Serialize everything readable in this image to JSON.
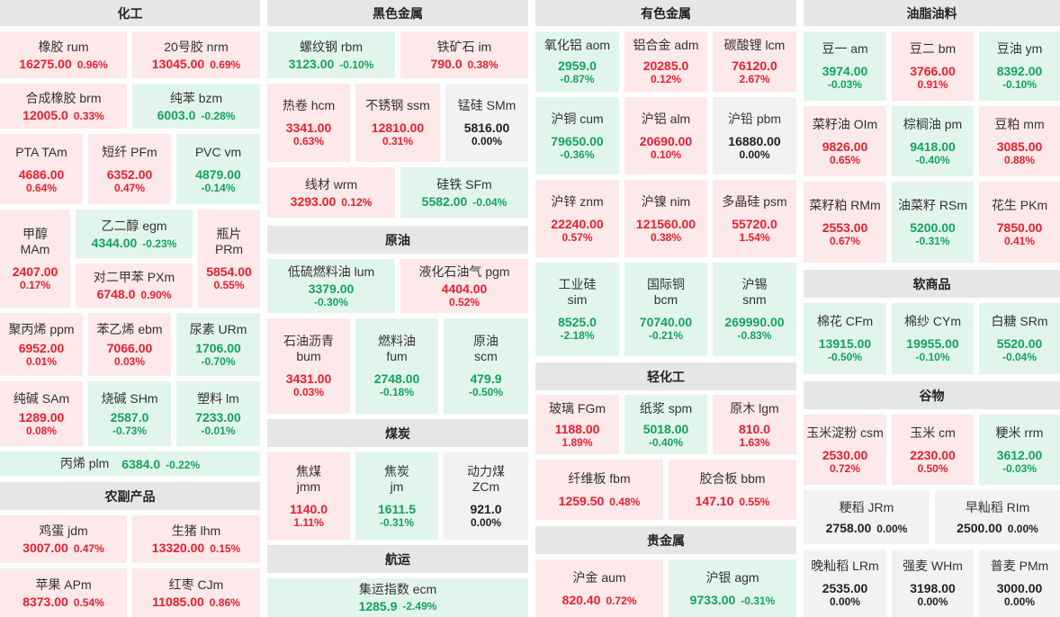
{
  "sections": {
    "huagong": "化工",
    "heise": "黑色金属",
    "youse": "有色金属",
    "youzhi": "油脂油料",
    "nongfu": "农副产品",
    "yuanyou": "原油",
    "meitan": "煤炭",
    "hangyun": "航运",
    "qinghua": "轻化工",
    "guijinshu": "贵金属",
    "ruanshang": "软商品",
    "guwu": "谷物"
  },
  "tiles": {
    "rum": {
      "name": "橡胶  rum",
      "price": "16275.00",
      "chg": "0.96%"
    },
    "nrm": {
      "name": "20号胶  nrm",
      "price": "13045.00",
      "chg": "0.69%"
    },
    "brm": {
      "name": "合成橡胶  brm",
      "price": "12005.0",
      "chg": "0.33%"
    },
    "bzm": {
      "name": "纯苯  bzm",
      "price": "6003.0",
      "chg": "-0.28%"
    },
    "tam": {
      "name": "PTA  TAm",
      "price": "4686.00",
      "chg": "0.64%"
    },
    "pfm": {
      "name": "短纤  PFm",
      "price": "6352.00",
      "chg": "0.47%"
    },
    "vm": {
      "name": "PVC  vm",
      "price": "4879.00",
      "chg": "-0.14%"
    },
    "mam_n1": {
      "name": "甲醇"
    },
    "mam": {
      "name": "MAm",
      "price": "2407.00",
      "chg": "0.17%"
    },
    "egm": {
      "name": "乙二醇  egm",
      "price": "4344.00",
      "chg": "-0.23%"
    },
    "prm_n1": {
      "name": "瓶片"
    },
    "prm": {
      "name": "PRm",
      "price": "5854.00",
      "chg": "0.55%"
    },
    "pxm": {
      "name": "对二甲苯  PXm",
      "price": "6748.0",
      "chg": "0.90%"
    },
    "ppm": {
      "name": "聚丙烯  ppm",
      "price": "6952.00",
      "chg": "0.01%"
    },
    "ebm": {
      "name": "苯乙烯  ebm",
      "price": "7066.00",
      "chg": "0.03%"
    },
    "urm": {
      "name": "尿素  URm",
      "price": "1706.00",
      "chg": "-0.70%"
    },
    "sam": {
      "name": "纯碱  SAm",
      "price": "1289.00",
      "chg": "0.08%"
    },
    "shm": {
      "name": "烧碱  SHm",
      "price": "2587.0",
      "chg": "-0.73%"
    },
    "lm": {
      "name": "塑料  lm",
      "price": "7233.00",
      "chg": "-0.01%"
    },
    "plm": {
      "name": "丙烯  plm",
      "price": "6384.0",
      "chg": "-0.22%"
    },
    "rbm": {
      "name": "螺纹钢  rbm",
      "price": "3123.00",
      "chg": "-0.10%"
    },
    "im": {
      "name": "铁矿石  im",
      "price": "790.0",
      "chg": "0.38%"
    },
    "hcm": {
      "name": "热卷  hcm",
      "price": "3341.00",
      "chg": "0.63%"
    },
    "ssm": {
      "name": "不锈钢  ssm",
      "price": "12810.00",
      "chg": "0.31%"
    },
    "smm": {
      "name": "锰硅  SMm",
      "price": "5816.00",
      "chg": "0.00%"
    },
    "wrm": {
      "name": "线材  wrm",
      "price": "3293.00",
      "chg": "0.12%"
    },
    "sfm": {
      "name": "硅铁  SFm",
      "price": "5582.00",
      "chg": "-0.04%"
    },
    "lum": {
      "name": "低硫燃料油  lum",
      "price": "3379.00",
      "chg": "-0.30%"
    },
    "pgm": {
      "name": "液化石油气  pgm",
      "price": "4404.00",
      "chg": "0.52%"
    },
    "bum_n1": {
      "name": "石油沥青"
    },
    "bum": {
      "name": "bum",
      "price": "3431.00",
      "chg": "0.03%"
    },
    "fum_n1": {
      "name": "燃料油"
    },
    "fum": {
      "name": "fum",
      "price": "2748.00",
      "chg": "-0.18%"
    },
    "scm_n1": {
      "name": "原油"
    },
    "scm": {
      "name": "scm",
      "price": "479.9",
      "chg": "-0.50%"
    },
    "jmm_n1": {
      "name": "焦煤"
    },
    "jmm": {
      "name": "jmm",
      "price": "1140.0",
      "chg": "1.11%"
    },
    "jm_n1": {
      "name": "焦炭"
    },
    "jm": {
      "name": "jm",
      "price": "1611.5",
      "chg": "-0.31%"
    },
    "zcm_n1": {
      "name": "动力煤"
    },
    "zcm": {
      "name": "ZCm",
      "price": "921.0",
      "chg": "0.00%"
    },
    "ecm": {
      "name": "集运指数  ecm",
      "price": "1285.9",
      "chg": "-2.49%"
    },
    "aom": {
      "name": "氧化铝  aom",
      "price": "2959.0",
      "chg": "-0.87%"
    },
    "adm": {
      "name": "铝合金  adm",
      "price": "20285.0",
      "chg": "0.12%"
    },
    "lcm": {
      "name": "碳酸锂  lcm",
      "price": "76120.0",
      "chg": "2.67%"
    },
    "cum": {
      "name": "沪铜  cum",
      "price": "79650.00",
      "chg": "-0.36%"
    },
    "alm": {
      "name": "沪铝  alm",
      "price": "20690.00",
      "chg": "0.10%"
    },
    "pbm": {
      "name": "沪铅  pbm",
      "price": "16880.00",
      "chg": "0.00%"
    },
    "znm": {
      "name": "沪锌  znm",
      "price": "22240.00",
      "chg": "0.57%"
    },
    "nim": {
      "name": "沪镍  nim",
      "price": "121560.00",
      "chg": "0.38%"
    },
    "psm": {
      "name": "多晶硅  psm",
      "price": "55720.0",
      "chg": "1.54%"
    },
    "sim_n1": {
      "name": "工业硅"
    },
    "sim": {
      "name": "sim",
      "price": "8525.0",
      "chg": "-2.18%"
    },
    "bcm_n1": {
      "name": "国际铜"
    },
    "bcm": {
      "name": "bcm",
      "price": "70740.00",
      "chg": "-0.21%"
    },
    "snm_n1": {
      "name": "沪锡"
    },
    "snm": {
      "name": "snm",
      "price": "269990.00",
      "chg": "-0.83%"
    },
    "fgm": {
      "name": "玻璃  FGm",
      "price": "1188.00",
      "chg": "1.89%"
    },
    "spm": {
      "name": "纸浆  spm",
      "price": "5018.00",
      "chg": "-0.40%"
    },
    "lgm": {
      "name": "原木  lgm",
      "price": "810.0",
      "chg": "1.63%"
    },
    "fbm": {
      "name": "纤维板  fbm",
      "price": "1259.50",
      "chg": "0.48%"
    },
    "bbm": {
      "name": "胶合板  bbm",
      "price": "147.10",
      "chg": "0.55%"
    },
    "aum": {
      "name": "沪金  aum",
      "price": "820.40",
      "chg": "0.72%"
    },
    "agm": {
      "name": "沪银  agm",
      "price": "9733.00",
      "chg": "-0.31%"
    },
    "am": {
      "name": "豆一  am",
      "price": "3974.00",
      "chg": "-0.03%"
    },
    "bm": {
      "name": "豆二  bm",
      "price": "3766.00",
      "chg": "0.91%"
    },
    "ym": {
      "name": "豆油  ym",
      "price": "8392.00",
      "chg": "-0.10%"
    },
    "oim": {
      "name": "菜籽油  OIm",
      "price": "9826.00",
      "chg": "0.65%"
    },
    "pm": {
      "name": "棕榈油  pm",
      "price": "9418.00",
      "chg": "-0.40%"
    },
    "mm": {
      "name": "豆粕  mm",
      "price": "3085.00",
      "chg": "0.88%"
    },
    "rmm": {
      "name": "菜籽粕  RMm",
      "price": "2553.00",
      "chg": "0.67%"
    },
    "rsm": {
      "name": "油菜籽  RSm",
      "price": "5200.00",
      "chg": "-0.31%"
    },
    "pkm": {
      "name": "花生  PKm",
      "price": "7850.00",
      "chg": "0.41%"
    },
    "cfm": {
      "name": "棉花  CFm",
      "price": "13915.00",
      "chg": "-0.50%"
    },
    "cym": {
      "name": "棉纱  CYm",
      "price": "19955.00",
      "chg": "-0.10%"
    },
    "srm": {
      "name": "白糖  SRm",
      "price": "5520.00",
      "chg": "-0.04%"
    },
    "csm": {
      "name": "玉米淀粉  csm",
      "price": "2530.00",
      "chg": "0.72%"
    },
    "cm": {
      "name": "玉米  cm",
      "price": "2230.00",
      "chg": "0.50%"
    },
    "rrm": {
      "name": "粳米  rrm",
      "price": "3612.00",
      "chg": "-0.03%"
    },
    "jrm": {
      "name": "粳稻  JRm",
      "price": "2758.00",
      "chg": "0.00%"
    },
    "rim": {
      "name": "早籼稻  RIm",
      "price": "2500.00",
      "chg": "0.00%"
    },
    "lrm": {
      "name": "晚籼稻  LRm",
      "price": "2535.00",
      "chg": "0.00%"
    },
    "whm": {
      "name": "强麦  WHm",
      "price": "3198.00",
      "chg": "0.00%"
    },
    "pmm": {
      "name": "普麦  PMm",
      "price": "3000.00",
      "chg": "0.00%"
    },
    "jdm": {
      "name": "鸡蛋  jdm",
      "price": "3007.00",
      "chg": "0.47%"
    },
    "lhm": {
      "name": "生猪  lhm",
      "price": "13320.00",
      "chg": "0.15%"
    },
    "apm": {
      "name": "苹果  APm",
      "price": "8373.00",
      "chg": "0.54%"
    },
    "cjm": {
      "name": "红枣  CJm",
      "price": "11085.00",
      "chg": "0.86%"
    }
  }
}
